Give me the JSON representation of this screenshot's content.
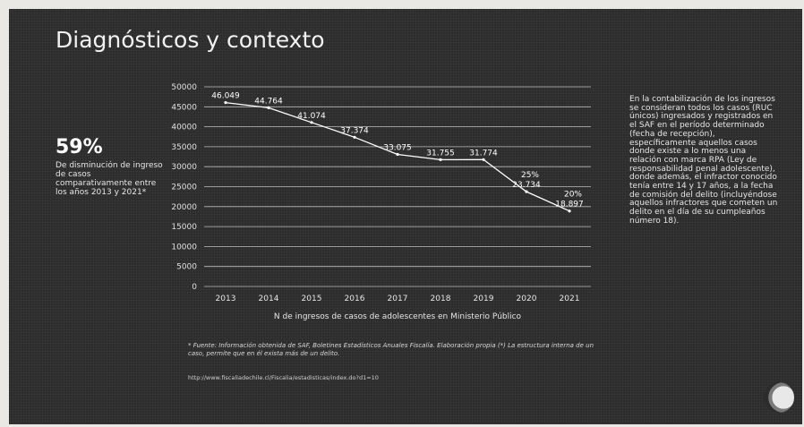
{
  "slide": {
    "title": "Diagnósticos y contexto",
    "highlight_value": "59%",
    "highlight_text": "De disminución de ingreso de casos comparativamente entre los años 2013 y 2021*",
    "side_note": "En la contabilización de los ingresos se consideran todos los casos (RUC únicos) ingresados y registrados en el SAF en el período determinado (fecha de recepción), específicamente aquellos casos donde existe a lo menos una relación con marca RPA (Ley de responsabilidad penal adolescente), donde además, el infractor conocido tenía entre 14 y 17 años, a la fecha de comisión del delito (incluyéndose aquellos infractores que cometen un delito en el día de su cumpleaños número 18).",
    "footnote": "* Fuente: Información obtenida de SAF, Boletines Estadísticos Anuales Fiscalía. Elaboración propia (*) La estructura interna de un caso, permite que en él exista más de un delito.",
    "link": "http://www.fiscaliadechile.cl/Fiscalia/estadisticas/index.do?d1=10"
  },
  "chart_data": {
    "type": "line",
    "title": "",
    "xlabel": "N de ingresos de casos de adolescentes en Ministerio Público",
    "ylabel": "",
    "categories": [
      "2013",
      "2014",
      "2015",
      "2016",
      "2017",
      "2018",
      "2019",
      "2020",
      "2021"
    ],
    "series": [
      {
        "values": [
          46049,
          44764,
          41074,
          37374,
          33075,
          31755,
          31774,
          23734,
          18897
        ]
      }
    ],
    "data_labels": [
      "46.049",
      "44.764",
      "41.074",
      "37.374",
      "33.075",
      "31.755",
      "31.774",
      "23.734",
      "18.897"
    ],
    "annotations": [
      {
        "text": "25%",
        "x": "2020"
      },
      {
        "text": "20%",
        "x": "2021"
      }
    ],
    "y_ticks": [
      0,
      5000,
      10000,
      15000,
      20000,
      25000,
      30000,
      35000,
      40000,
      45000,
      50000
    ],
    "ylim": [
      0,
      50000
    ],
    "grid": true,
    "line_color": "#ffffff"
  }
}
